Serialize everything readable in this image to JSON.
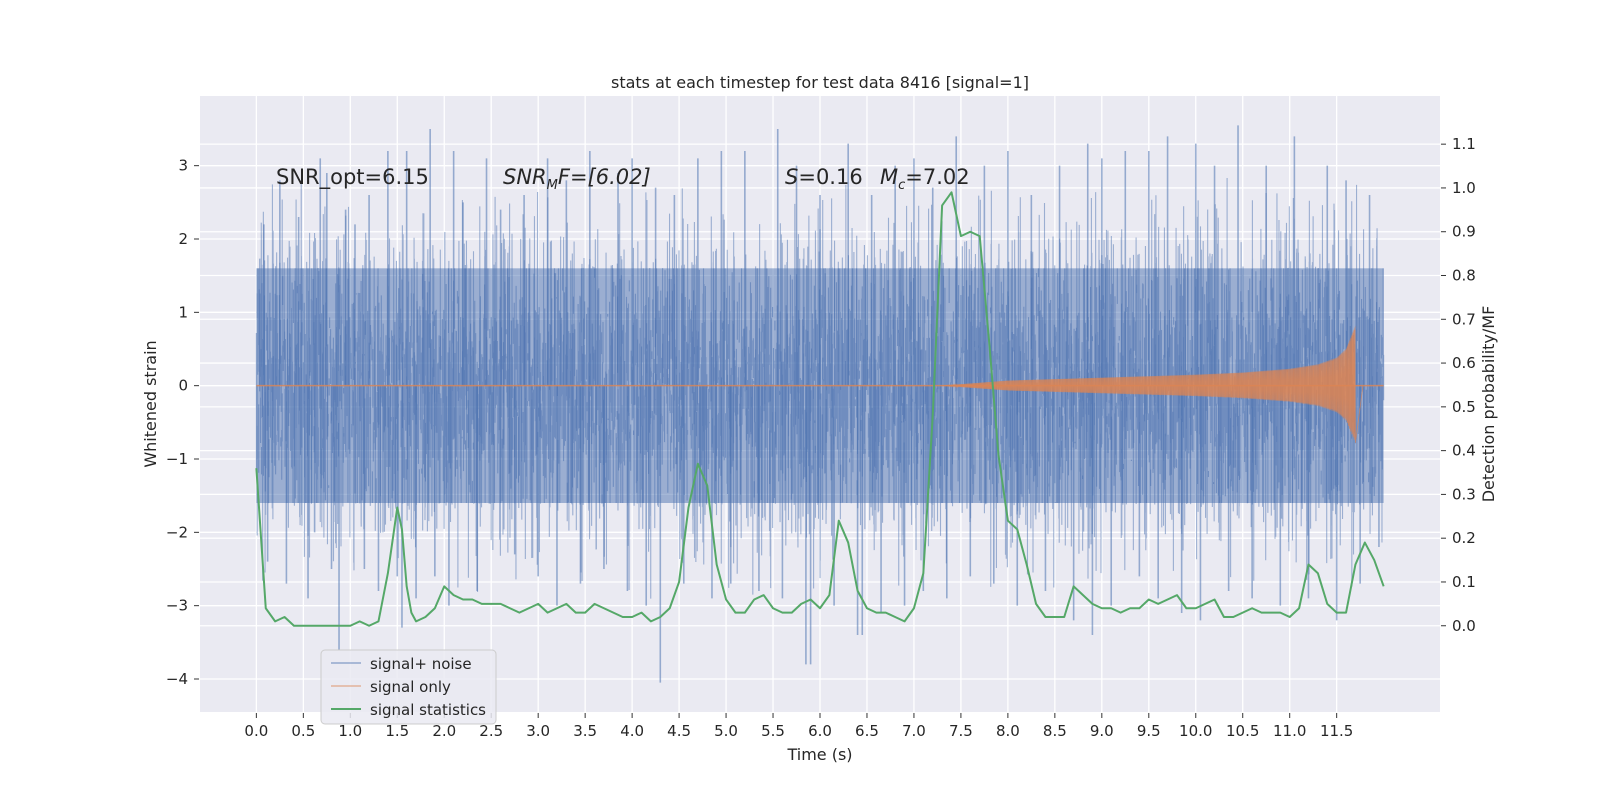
{
  "chart_data": {
    "type": "line",
    "title": "stats at each timestep for test data 8416 [signal=1]",
    "xlabel": "Time (s)",
    "ylabel": "Whitened strain",
    "ylabel_right": "Detection probability/MF",
    "xlim": [
      -0.6,
      12.6
    ],
    "ylim": [
      -4.45,
      3.95
    ],
    "ylim_right": [
      -0.197,
      1.21
    ],
    "grid": true,
    "legend_placement": "lower-left",
    "x_ticks": [
      "0.0",
      "0.5",
      "1.0",
      "1.5",
      "2.0",
      "2.5",
      "3.0",
      "3.5",
      "4.0",
      "4.5",
      "5.0",
      "5.5",
      "6.0",
      "6.5",
      "7.0",
      "7.5",
      "8.0",
      "8.5",
      "9.0",
      "9.5",
      "10.0",
      "10.5",
      "11.0",
      "11.5"
    ],
    "y_ticks": [
      "−4",
      "−3",
      "−2",
      "−1",
      "0",
      "1",
      "2",
      "3"
    ],
    "y_ticks_right": [
      "0.0",
      "0.1",
      "0.2",
      "0.3",
      "0.4",
      "0.5",
      "0.6",
      "0.7",
      "0.8",
      "0.9",
      "1.0",
      "1.1"
    ],
    "annotations": {
      "snr_opt": "SNR_opt=6.15",
      "snr_mf_label": "SNR",
      "snr_mf_sub": "M",
      "snr_mf_rest": "F=[6.02]",
      "s_label": "S",
      "s_value": "=0.16",
      "mc_label": "M",
      "mc_sub": "c",
      "mc_value": "=7.02"
    },
    "series": [
      {
        "name": "signal+ noise",
        "color": "#4c72b0",
        "t_range": [
          0.0,
          12.0
        ],
        "envelope_typical": [
          -1.6,
          1.6
        ],
        "spikes": [
          [
            0.08,
            2.2
          ],
          [
            0.12,
            -2.4
          ],
          [
            0.25,
            2.8
          ],
          [
            0.32,
            -2.7
          ],
          [
            0.45,
            2.3
          ],
          [
            0.55,
            -2.9
          ],
          [
            0.62,
            -2.0
          ],
          [
            0.68,
            3.1
          ],
          [
            0.75,
            2.9
          ],
          [
            0.8,
            -2.5
          ],
          [
            0.88,
            -3.6
          ],
          [
            0.95,
            2.4
          ],
          [
            1.05,
            2.2
          ],
          [
            1.15,
            -2.5
          ],
          [
            1.2,
            2.6
          ],
          [
            1.3,
            -2.8
          ],
          [
            1.4,
            3.2
          ],
          [
            1.5,
            -2.6
          ],
          [
            1.55,
            -3.3
          ],
          [
            1.6,
            3.2
          ],
          [
            1.7,
            -2.9
          ],
          [
            1.85,
            3.5
          ],
          [
            1.9,
            -2.6
          ],
          [
            2.05,
            -3.0
          ],
          [
            2.1,
            3.2
          ],
          [
            2.2,
            2.5
          ],
          [
            2.35,
            -2.8
          ],
          [
            2.45,
            3.1
          ],
          [
            2.6,
            2.4
          ],
          [
            2.75,
            -2.3
          ],
          [
            2.85,
            2.6
          ],
          [
            3.0,
            -2.6
          ],
          [
            3.1,
            3.1
          ],
          [
            3.2,
            -3.0
          ],
          [
            3.3,
            2.8
          ],
          [
            3.45,
            -2.7
          ],
          [
            3.55,
            3.2
          ],
          [
            3.7,
            -2.5
          ],
          [
            3.85,
            2.9
          ],
          [
            3.95,
            -2.8
          ],
          [
            4.0,
            3.1
          ],
          [
            4.15,
            -3.0
          ],
          [
            4.25,
            2.7
          ],
          [
            4.3,
            -4.05
          ],
          [
            4.45,
            2.6
          ],
          [
            4.55,
            -2.7
          ],
          [
            4.7,
            3.1
          ],
          [
            4.85,
            -2.9
          ],
          [
            4.95,
            3.2
          ],
          [
            5.05,
            -2.7
          ],
          [
            5.2,
            3.2
          ],
          [
            5.35,
            -2.8
          ],
          [
            5.55,
            3.5
          ],
          [
            5.6,
            -2.9
          ],
          [
            5.75,
            3.0
          ],
          [
            5.85,
            -3.8
          ],
          [
            5.9,
            -3.8
          ],
          [
            6.0,
            2.6
          ],
          [
            6.15,
            -3.0
          ],
          [
            6.3,
            3.3
          ],
          [
            6.4,
            -3.4
          ],
          [
            6.45,
            -3.4
          ],
          [
            6.55,
            2.6
          ],
          [
            6.65,
            -3.1
          ],
          [
            6.8,
            3.0
          ],
          [
            6.9,
            -3.0
          ],
          [
            7.0,
            3.1
          ],
          [
            7.1,
            -2.8
          ],
          [
            7.2,
            2.7
          ],
          [
            7.35,
            -2.9
          ],
          [
            7.45,
            3.4
          ],
          [
            7.6,
            -2.6
          ],
          [
            7.75,
            3.0
          ],
          [
            7.85,
            -2.7
          ],
          [
            8.0,
            3.2
          ],
          [
            8.1,
            -3.0
          ],
          [
            8.25,
            2.6
          ],
          [
            8.4,
            -2.8
          ],
          [
            8.55,
            3.0
          ],
          [
            8.7,
            -3.2
          ],
          [
            8.85,
            3.3
          ],
          [
            8.9,
            -3.4
          ],
          [
            9.0,
            3.1
          ],
          [
            9.1,
            -3.0
          ],
          [
            9.25,
            3.2
          ],
          [
            9.4,
            -2.6
          ],
          [
            9.5,
            3.2
          ],
          [
            9.6,
            -2.9
          ],
          [
            9.7,
            3.4
          ],
          [
            9.85,
            -3.1
          ],
          [
            10.0,
            3.3
          ],
          [
            10.05,
            -3.2
          ],
          [
            10.2,
            3.0
          ],
          [
            10.35,
            -2.8
          ],
          [
            10.45,
            3.55
          ],
          [
            10.6,
            -2.9
          ],
          [
            10.75,
            3.0
          ],
          [
            10.9,
            -3.0
          ],
          [
            11.05,
            3.4
          ],
          [
            11.2,
            -2.9
          ],
          [
            11.4,
            3.0
          ],
          [
            11.5,
            -3.2
          ],
          [
            11.6,
            2.8
          ],
          [
            11.75,
            -2.7
          ],
          [
            11.85,
            2.6
          ],
          [
            11.95,
            -2.2
          ]
        ]
      },
      {
        "name": "signal only",
        "color": "#dd8452",
        "t_range": [
          0.0,
          12.0
        ],
        "chirp_start": 7.3,
        "merger": 11.7,
        "envelope": [
          [
            7.3,
            0.0
          ],
          [
            8.0,
            0.07
          ],
          [
            9.0,
            0.11
          ],
          [
            10.0,
            0.15
          ],
          [
            10.5,
            0.18
          ],
          [
            11.0,
            0.23
          ],
          [
            11.3,
            0.29
          ],
          [
            11.5,
            0.38
          ],
          [
            11.6,
            0.5
          ],
          [
            11.7,
            0.82
          ]
        ]
      },
      {
        "name": "signal statistics",
        "color": "#55a868",
        "axis": "right",
        "x": [
          0.0,
          0.1,
          0.2,
          0.3,
          0.4,
          0.5,
          0.6,
          0.7,
          0.8,
          0.9,
          1.0,
          1.1,
          1.2,
          1.3,
          1.4,
          1.5,
          1.55,
          1.6,
          1.65,
          1.7,
          1.8,
          1.9,
          2.0,
          2.1,
          2.2,
          2.3,
          2.4,
          2.5,
          2.6,
          2.7,
          2.8,
          2.9,
          3.0,
          3.1,
          3.2,
          3.3,
          3.4,
          3.5,
          3.6,
          3.7,
          3.8,
          3.9,
          4.0,
          4.1,
          4.2,
          4.3,
          4.4,
          4.5,
          4.6,
          4.7,
          4.8,
          4.9,
          5.0,
          5.1,
          5.2,
          5.3,
          5.4,
          5.5,
          5.6,
          5.7,
          5.8,
          5.9,
          6.0,
          6.1,
          6.2,
          6.3,
          6.4,
          6.5,
          6.6,
          6.7,
          6.8,
          6.9,
          7.0,
          7.1,
          7.2,
          7.3,
          7.4,
          7.45,
          7.5,
          7.6,
          7.7,
          7.8,
          7.9,
          8.0,
          8.1,
          8.2,
          8.3,
          8.4,
          8.5,
          8.6,
          8.7,
          8.8,
          8.9,
          9.0,
          9.1,
          9.2,
          9.3,
          9.4,
          9.5,
          9.6,
          9.7,
          9.8,
          9.9,
          10.0,
          10.1,
          10.2,
          10.3,
          10.4,
          10.5,
          10.6,
          10.7,
          10.8,
          10.9,
          11.0,
          11.1,
          11.2,
          11.3,
          11.4,
          11.5,
          11.6,
          11.7,
          11.8,
          11.9,
          12.0
        ],
        "values": [
          0.36,
          0.04,
          0.01,
          0.02,
          0.0,
          0.0,
          0.0,
          0.0,
          0.0,
          0.0,
          0.0,
          0.01,
          0.0,
          0.01,
          0.12,
          0.27,
          0.22,
          0.09,
          0.03,
          0.01,
          0.02,
          0.04,
          0.09,
          0.07,
          0.06,
          0.06,
          0.05,
          0.05,
          0.05,
          0.04,
          0.03,
          0.04,
          0.05,
          0.03,
          0.04,
          0.05,
          0.03,
          0.03,
          0.05,
          0.04,
          0.03,
          0.02,
          0.02,
          0.03,
          0.01,
          0.02,
          0.04,
          0.1,
          0.27,
          0.37,
          0.32,
          0.14,
          0.06,
          0.03,
          0.03,
          0.06,
          0.07,
          0.04,
          0.03,
          0.03,
          0.05,
          0.06,
          0.04,
          0.07,
          0.24,
          0.19,
          0.08,
          0.04,
          0.03,
          0.03,
          0.02,
          0.01,
          0.04,
          0.12,
          0.48,
          0.96,
          0.99,
          0.94,
          0.89,
          0.9,
          0.89,
          0.65,
          0.39,
          0.24,
          0.22,
          0.14,
          0.05,
          0.02,
          0.02,
          0.02,
          0.09,
          0.07,
          0.05,
          0.04,
          0.04,
          0.03,
          0.04,
          0.04,
          0.06,
          0.05,
          0.06,
          0.07,
          0.04,
          0.04,
          0.05,
          0.06,
          0.02,
          0.02,
          0.03,
          0.04,
          0.03,
          0.03,
          0.03,
          0.02,
          0.04,
          0.14,
          0.12,
          0.05,
          0.03,
          0.03,
          0.14,
          0.19,
          0.15,
          0.09
        ]
      }
    ]
  }
}
